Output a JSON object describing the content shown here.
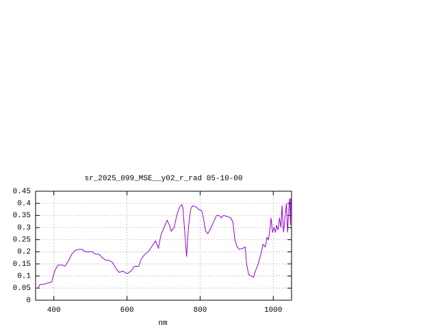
{
  "chart_data": {
    "type": "line",
    "title": "sr_2025_099_MSE__y02_r_rad 05-10-00",
    "x_label": "nm",
    "xlim": [
      350,
      1050
    ],
    "xticks": [
      400,
      600,
      800,
      1000
    ],
    "ylim": [
      0,
      0.45
    ],
    "yticks": [
      0,
      0.05,
      0.1,
      0.15,
      0.2,
      0.25,
      0.3,
      0.35,
      0.4,
      0.45
    ],
    "grid": true,
    "x": [
      350,
      357,
      362,
      372,
      380,
      394,
      402,
      411,
      424,
      430,
      439,
      449,
      458,
      468,
      477,
      486,
      495,
      505,
      514,
      523,
      533,
      542,
      551,
      561,
      570,
      579,
      589,
      600,
      611,
      620,
      632,
      639,
      649,
      658,
      667,
      678,
      686,
      693,
      701,
      710,
      716,
      721,
      729,
      736,
      744,
      750,
      753,
      757,
      763,
      768,
      774,
      779,
      789,
      796,
      804,
      809,
      815,
      821,
      830,
      837,
      845,
      852,
      858,
      864,
      875,
      884,
      890,
      895,
      901,
      907,
      918,
      923,
      927,
      933,
      940,
      946,
      951,
      959,
      966,
      972,
      978,
      983,
      987,
      993,
      994,
      998,
      1002,
      1006,
      1009,
      1013,
      1017,
      1021,
      1024,
      1028,
      1032,
      1036,
      1039,
      1043,
      1045,
      1047,
      1048
    ],
    "series": [
      {
        "color": "#9400d3",
        "values": [
          0.05,
          0.05,
          0.065,
          0.065,
          0.07,
          0.075,
          0.12,
          0.145,
          0.145,
          0.14,
          0.16,
          0.19,
          0.205,
          0.21,
          0.21,
          0.2,
          0.2,
          0.2,
          0.19,
          0.19,
          0.175,
          0.165,
          0.165,
          0.155,
          0.13,
          0.115,
          0.12,
          0.11,
          0.12,
          0.14,
          0.14,
          0.17,
          0.19,
          0.2,
          0.22,
          0.245,
          0.215,
          0.27,
          0.3,
          0.33,
          0.31,
          0.285,
          0.3,
          0.35,
          0.385,
          0.395,
          0.38,
          0.3,
          0.18,
          0.3,
          0.375,
          0.39,
          0.385,
          0.375,
          0.37,
          0.34,
          0.285,
          0.275,
          0.3,
          0.325,
          0.35,
          0.35,
          0.34,
          0.35,
          0.345,
          0.34,
          0.32,
          0.25,
          0.22,
          0.21,
          0.215,
          0.22,
          0.15,
          0.105,
          0.1,
          0.095,
          0.12,
          0.15,
          0.19,
          0.23,
          0.22,
          0.26,
          0.25,
          0.32,
          0.34,
          0.28,
          0.3,
          0.28,
          0.31,
          0.29,
          0.34,
          0.3,
          0.39,
          0.28,
          0.34,
          0.4,
          0.28,
          0.39,
          0.42,
          0.31,
          0.42
        ]
      }
    ]
  }
}
